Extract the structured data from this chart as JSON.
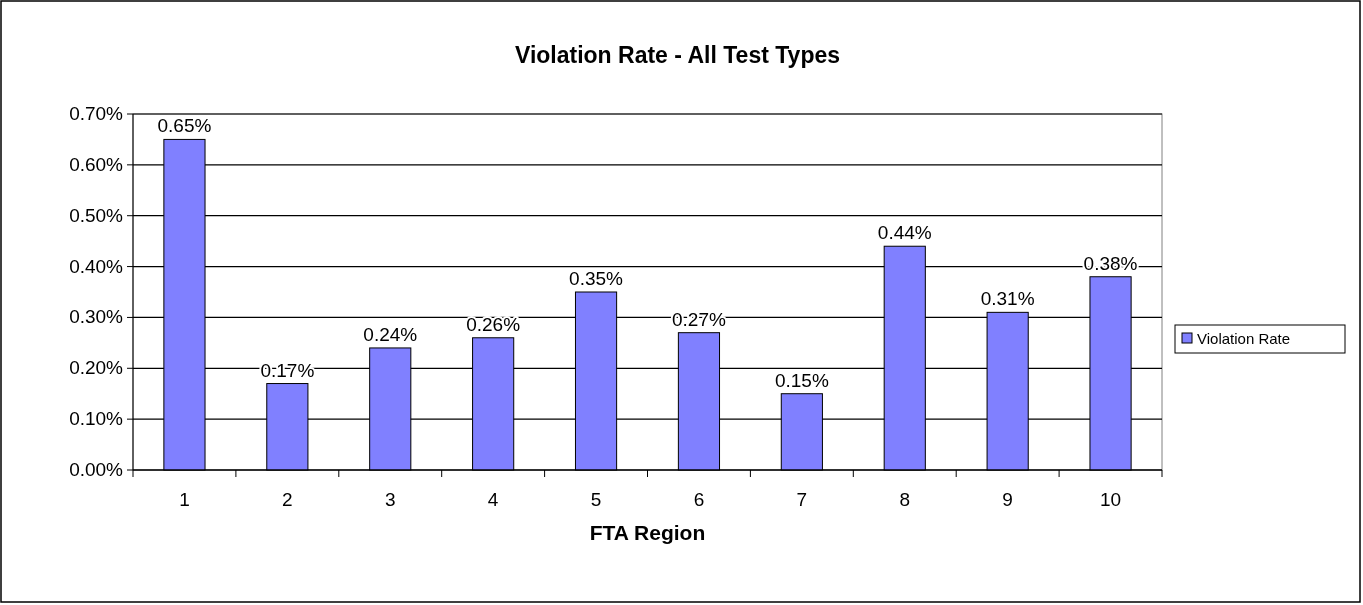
{
  "chart_data": {
    "type": "bar",
    "title": "Violation Rate - All Test Types",
    "xlabel": "FTA Region",
    "categories": [
      "1",
      "2",
      "3",
      "4",
      "5",
      "6",
      "7",
      "8",
      "9",
      "10"
    ],
    "series": [
      {
        "name": "Violation Rate",
        "color": "#8080ff",
        "values": [
          0.65,
          0.17,
          0.24,
          0.26,
          0.35,
          0.27,
          0.15,
          0.44,
          0.31,
          0.38
        ],
        "value_labels": [
          "0.65%",
          "0.17%",
          "0.24%",
          "0.26%",
          "0.35%",
          "0.27%",
          "0.15%",
          "0.44%",
          "0.31%",
          "0.38%"
        ]
      }
    ],
    "ylim": [
      0,
      0.7
    ],
    "yticks": [
      {
        "value": 0,
        "label": "0.00%"
      },
      {
        "value": 0.1,
        "label": "0.10%"
      },
      {
        "value": 0.2,
        "label": "0.20%"
      },
      {
        "value": 0.3,
        "label": "0.30%"
      },
      {
        "value": 0.4,
        "label": "0.40%"
      },
      {
        "value": 0.5,
        "label": "0.50%"
      },
      {
        "value": 0.6,
        "label": "0.60%"
      },
      {
        "value": 0.7,
        "label": "0.70%"
      }
    ],
    "grid": "y",
    "legend": "right"
  }
}
